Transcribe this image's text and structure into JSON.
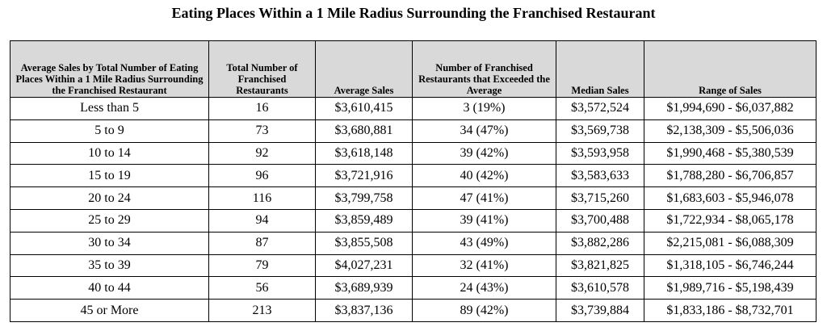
{
  "header": {
    "title": "Eating Places Within a 1 Mile Radius Surrounding the Franchised Restaurant"
  },
  "table": {
    "columns": [
      "Average Sales by Total Number of Eating Places Within a 1 Mile Radius Surrounding the Franchised Restaurant",
      "Total Number of Franchised Restaurants",
      "Average Sales",
      "Number of Franchised Restaurants that Exceeded the Average",
      "Median Sales",
      "Range of Sales"
    ],
    "rows": [
      [
        "Less than 5",
        "16",
        "$3,610,415",
        "3 (19%)",
        "$3,572,524",
        "$1,994,690 - $6,037,882"
      ],
      [
        "5 to 9",
        "73",
        "$3,680,881",
        "34 (47%)",
        "$3,569,738",
        "$2,138,309 - $5,506,036"
      ],
      [
        "10 to 14",
        "92",
        "$3,618,148",
        "39 (42%)",
        "$3,593,958",
        "$1,990,468 - $5,380,539"
      ],
      [
        "15 to 19",
        "96",
        "$3,721,916",
        "40 (42%)",
        "$3,583,633",
        "$1,788,280 - $6,706,857"
      ],
      [
        "20 to 24",
        "116",
        "$3,799,758",
        "47 (41%)",
        "$3,715,260",
        "$1,683,603 - $5,946,078"
      ],
      [
        "25 to 29",
        "94",
        "$3,859,489",
        "39 (41%)",
        "$3,700,488",
        "$1,722,934 - $8,065,178"
      ],
      [
        "30 to 34",
        "87",
        "$3,855,508",
        "43 (49%)",
        "$3,882,286",
        "$2,215,081 - $6,088,309"
      ],
      [
        "35 to 39",
        "79",
        "$4,027,231",
        "32 (41%)",
        "$3,821,825",
        "$1,318,105 - $6,746,244"
      ],
      [
        "40 to 44",
        "56",
        "$3,689,939",
        "24 (43%)",
        "$3,610,578",
        "$1,989,716 - $5,198,439"
      ],
      [
        "45 or More",
        "213",
        "$3,837,136",
        "89 (42%)",
        "$3,739,884",
        "$1,833,186 - $8,732,701"
      ]
    ]
  }
}
